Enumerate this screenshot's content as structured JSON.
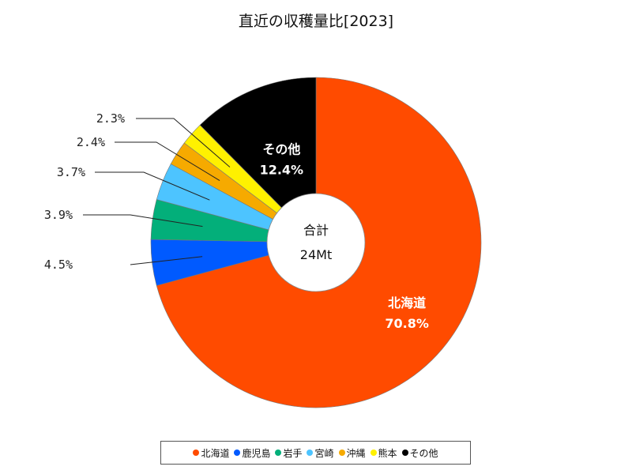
{
  "chart_data": {
    "type": "pie",
    "title": "直近の収穫量比[2023]",
    "center_label": "合計",
    "center_value": "24Mt",
    "slices": [
      {
        "name": "北海道",
        "value": 70.8,
        "label": "70.8%",
        "color": "#ff4b00",
        "label_inside": true
      },
      {
        "name": "鹿児島",
        "value": 4.5,
        "label": "4.5%",
        "color": "#005aff",
        "label_inside": false
      },
      {
        "name": "岩手",
        "value": 3.9,
        "label": "3.9%",
        "color": "#03af7a",
        "label_inside": false
      },
      {
        "name": "宮崎",
        "value": 3.7,
        "label": "3.7%",
        "color": "#4dc4ff",
        "label_inside": false
      },
      {
        "name": "沖縄",
        "value": 2.4,
        "label": "2.4%",
        "color": "#f6aa00",
        "label_inside": false
      },
      {
        "name": "熊本",
        "value": 2.3,
        "label": "2.3%",
        "color": "#fff100",
        "label_inside": false
      },
      {
        "name": "その他",
        "value": 12.4,
        "label": "12.4%",
        "color": "#000000",
        "label_inside": true
      }
    ],
    "legend_position": "bottom"
  }
}
